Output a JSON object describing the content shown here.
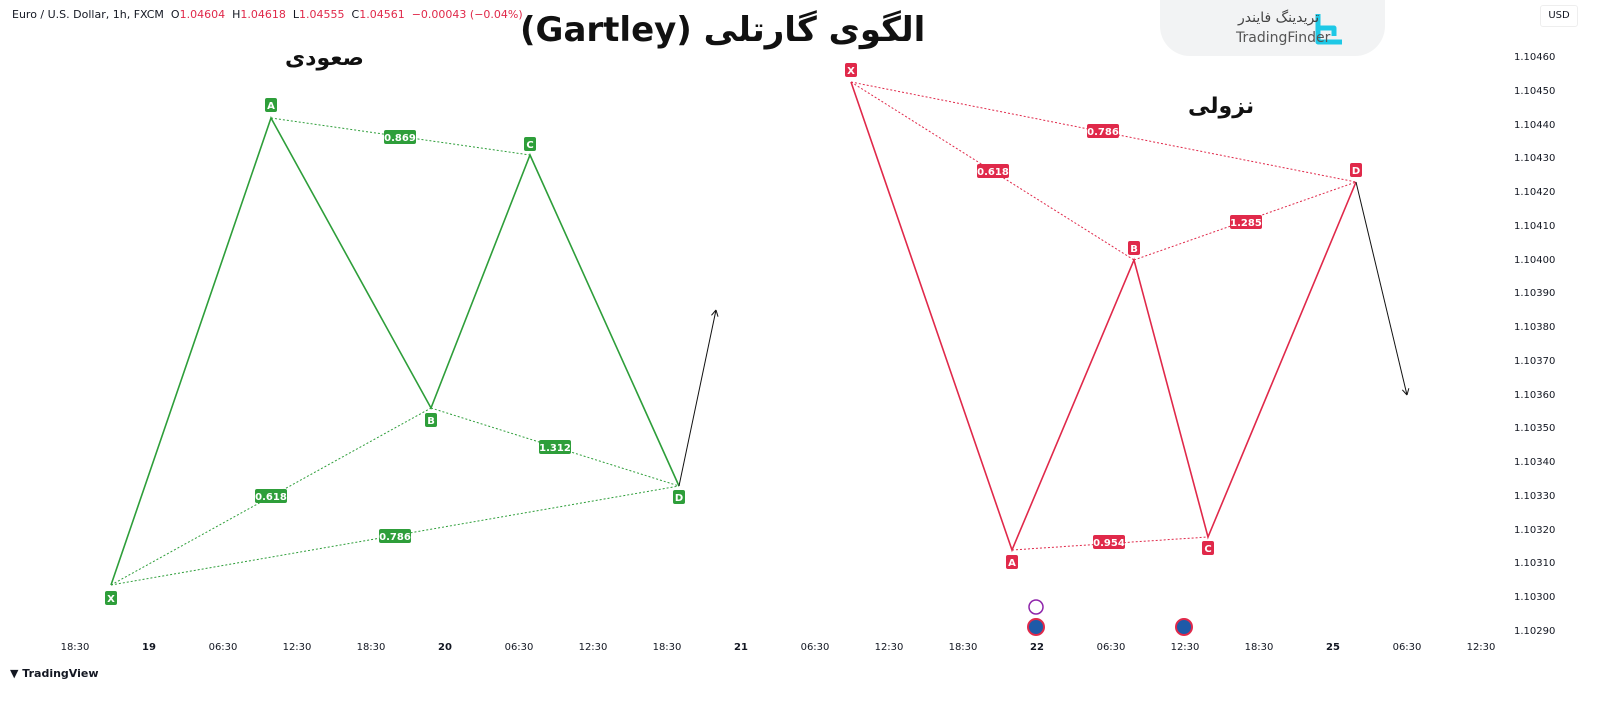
{
  "header": {
    "symbol": "Euro / U.S. Dollar, 1h, FXCM",
    "o_label": "O",
    "o": "1.04604",
    "h_label": "H",
    "h": "1.04618",
    "l_label": "L",
    "l": "1.04555",
    "c_label": "C",
    "c": "1.04561",
    "change": "−0.00043 (−0.04%)"
  },
  "title": "الگوی گارتلی (Gartley)",
  "bullish": {
    "label": "صعودی",
    "color": "#2e9e3a",
    "points": [
      "X",
      "A",
      "B",
      "C",
      "D"
    ],
    "ratios": [
      "0.869",
      "0.618",
      "1.312",
      "0.786"
    ]
  },
  "bearish": {
    "label": "نزولی",
    "color": "#e0294a",
    "points": [
      "X",
      "A",
      "B",
      "C",
      "D"
    ],
    "ratios": [
      "0.786",
      "0.618",
      "1.285",
      "0.954"
    ]
  },
  "logo": {
    "fa": "تریدینگ فایندر",
    "en": "TradingFinder",
    "color": "#1ec8e6"
  },
  "currency": "USD",
  "y_axis": [
    "1.10460",
    "1.10450",
    "1.10440",
    "1.10430",
    "1.10420",
    "1.10410",
    "1.10400",
    "1.10390",
    "1.10380",
    "1.10370",
    "1.10360",
    "1.10350",
    "1.10340",
    "1.10330",
    "1.10320",
    "1.10310",
    "1.10300",
    "1.10290"
  ],
  "x_axis": [
    "18:30",
    "19",
    "06:30",
    "12:30",
    "18:30",
    "20",
    "06:30",
    "12:30",
    "18:30",
    "21",
    "06:30",
    "12:30",
    "18:30",
    "22",
    "06:30",
    "12:30",
    "18:30",
    "25",
    "06:30",
    "12:30"
  ],
  "footer": "TradingView"
}
